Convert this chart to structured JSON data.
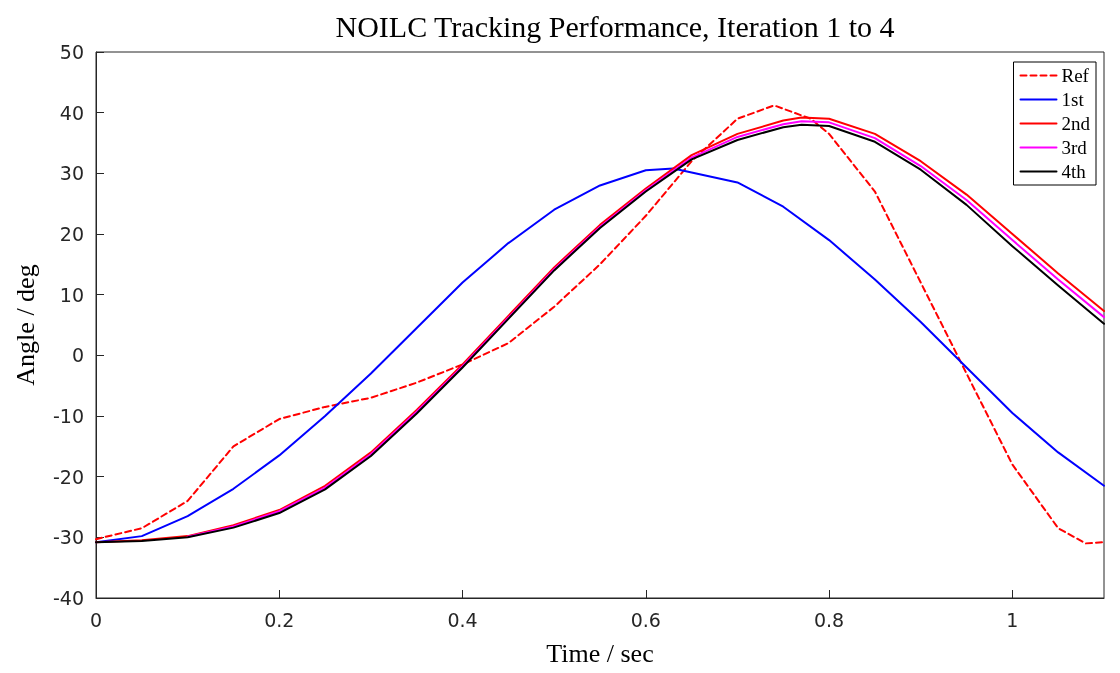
{
  "chart_data": {
    "type": "line",
    "title": "NOILC Tracking Performance, Iteration 1 to 4",
    "xlabel": "Time / sec",
    "ylabel": "Angle / deg",
    "xlim": [
      0,
      1.1
    ],
    "xticks": [
      0,
      0.2,
      0.4,
      0.6,
      0.8,
      1
    ],
    "ylim": [
      -40,
      50
    ],
    "yticks": [
      -40,
      -30,
      -20,
      -10,
      0,
      10,
      20,
      30,
      40,
      50
    ],
    "grid": false,
    "legend": "top right",
    "marker": "none",
    "series": [
      {
        "name": "Ref",
        "color": "#ff0000",
        "line_style": "dashed",
        "x": [
          0,
          0.05,
          0.1,
          0.15,
          0.2,
          0.25,
          0.3,
          0.35,
          0.4,
          0.45,
          0.5,
          0.55,
          0.6,
          0.65,
          0.7,
          0.74,
          0.78,
          0.8,
          0.85,
          0.9,
          0.95,
          1.0,
          1.05,
          1.08,
          1.1
        ],
        "values": [
          -30.3,
          -28.5,
          -24,
          -15,
          -10.5,
          -8.5,
          -7,
          -4.5,
          -1.5,
          2,
          8,
          15,
          23,
          32,
          39,
          41.2,
          39,
          36.5,
          27,
          12,
          -3,
          -18,
          -28.5,
          -31,
          -30.8
        ]
      },
      {
        "name": "1st",
        "color": "#0000ff",
        "line_style": "solid",
        "x": [
          0,
          0.05,
          0.1,
          0.15,
          0.2,
          0.25,
          0.3,
          0.35,
          0.4,
          0.45,
          0.5,
          0.55,
          0.6,
          0.63,
          0.7,
          0.75,
          0.8,
          0.85,
          0.9,
          0.95,
          1.0,
          1.05,
          1.1
        ],
        "values": [
          -30.8,
          -29.8,
          -26.5,
          -22,
          -16.5,
          -10,
          -3,
          4.5,
          12,
          18.5,
          24,
          28,
          30.5,
          30.8,
          28.5,
          24.5,
          19,
          12.5,
          5.5,
          -2,
          -9.5,
          -16,
          -21.5
        ]
      },
      {
        "name": "2nd",
        "color": "#ff0000",
        "line_style": "solid",
        "x": [
          0,
          0.05,
          0.1,
          0.15,
          0.2,
          0.25,
          0.3,
          0.35,
          0.4,
          0.45,
          0.5,
          0.55,
          0.6,
          0.65,
          0.7,
          0.75,
          0.77,
          0.8,
          0.85,
          0.9,
          0.95,
          1.0,
          1.05,
          1.1
        ],
        "values": [
          -30.8,
          -30.5,
          -29.8,
          -28,
          -25.5,
          -21.5,
          -16,
          -9,
          -1.5,
          6.5,
          14.5,
          21.5,
          27.5,
          33,
          36.5,
          38.7,
          39.2,
          39,
          36.5,
          32,
          26.5,
          20,
          13.5,
          7.3
        ]
      },
      {
        "name": "3rd",
        "color": "#ff00ff",
        "line_style": "solid",
        "x": [
          0.1,
          0.15,
          0.2,
          0.25,
          0.3,
          0.35,
          0.4,
          0.45,
          0.5,
          0.55,
          0.6,
          0.65,
          0.7,
          0.75,
          0.77,
          0.8,
          0.85,
          0.9,
          0.95,
          1.0,
          1.05,
          1.1
        ],
        "values": [
          -29.9,
          -28.2,
          -25.7,
          -21.8,
          -16.3,
          -9.3,
          -1.8,
          6.2,
          14.2,
          21.2,
          27.2,
          32.6,
          36,
          38.1,
          38.6,
          38.4,
          35.8,
          31.2,
          25.6,
          19,
          12.5,
          6.3
        ]
      },
      {
        "name": "4th",
        "color": "#000000",
        "line_style": "solid",
        "x": [
          0,
          0.05,
          0.1,
          0.15,
          0.2,
          0.25,
          0.3,
          0.35,
          0.4,
          0.45,
          0.5,
          0.55,
          0.6,
          0.65,
          0.7,
          0.75,
          0.77,
          0.8,
          0.85,
          0.9,
          0.95,
          1.0,
          1.05,
          1.1
        ],
        "values": [
          -30.8,
          -30.6,
          -30,
          -28.4,
          -26,
          -22.1,
          -16.6,
          -9.6,
          -2,
          6,
          14,
          21,
          27,
          32.3,
          35.5,
          37.6,
          38,
          37.8,
          35.2,
          30.6,
          24.8,
          18,
          11.5,
          5.2
        ]
      }
    ]
  }
}
